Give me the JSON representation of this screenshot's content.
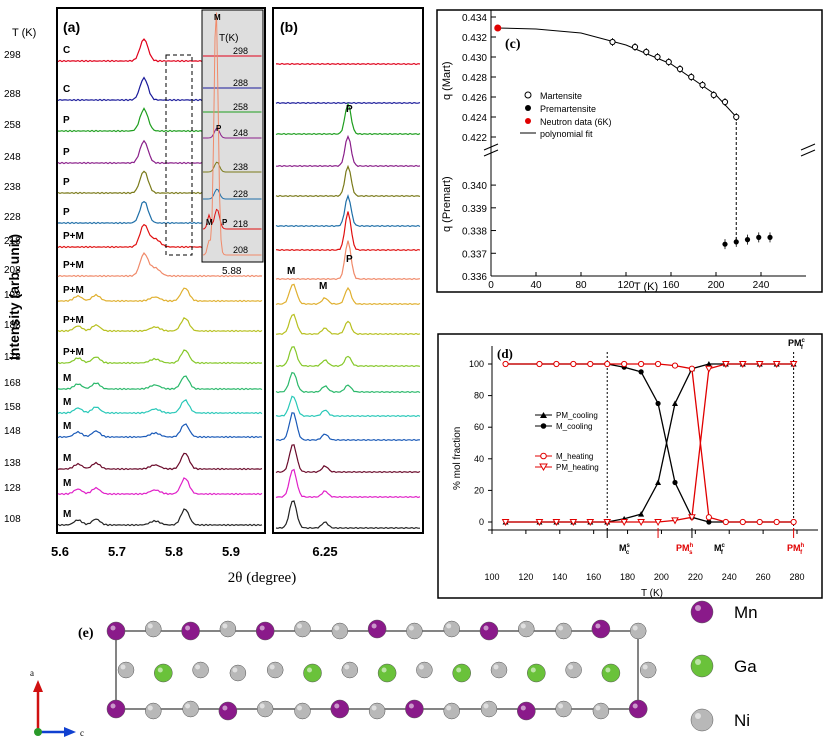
{
  "panel_a": {
    "letter": "(a)",
    "temp_header": "T (K)",
    "y_title": "Intensity (arb. unit)",
    "x_title": "2θ (degree)",
    "x_ticks": [
      "5.6",
      "5.7",
      "5.8",
      "5.9"
    ],
    "rows": [
      {
        "temp": "298",
        "phase": "C",
        "color": "#e0001a"
      },
      {
        "temp": "288",
        "phase": "C",
        "color": "#1a1a9a"
      },
      {
        "temp": "258",
        "phase": "P",
        "color": "#1e9e1e"
      },
      {
        "temp": "248",
        "phase": "P",
        "color": "#8a1f8a"
      },
      {
        "temp": "238",
        "phase": "P",
        "color": "#7a7a1a"
      },
      {
        "temp": "228",
        "phase": "P",
        "color": "#1f6fa8"
      },
      {
        "temp": "218",
        "phase": "P+M",
        "color": "#e01010"
      },
      {
        "temp": "208",
        "phase": "P+M",
        "color": "#f08a6a"
      },
      {
        "temp": "198",
        "phase": "P+M",
        "color": "#e0b030"
      },
      {
        "temp": "188",
        "phase": "P+M",
        "color": "#b8c020"
      },
      {
        "temp": "178",
        "phase": "P+M",
        "color": "#86c82a"
      },
      {
        "temp": "168",
        "phase": "M",
        "color": "#2ab86a"
      },
      {
        "temp": "158",
        "phase": "M",
        "color": "#28c8b8"
      },
      {
        "temp": "148",
        "phase": "M",
        "color": "#1a5ab8"
      },
      {
        "temp": "138",
        "phase": "M",
        "color": "#6a0a2a"
      },
      {
        "temp": "128",
        "phase": "M",
        "color": "#e020c8"
      },
      {
        "temp": "108",
        "phase": "M",
        "color": "#222222"
      }
    ],
    "inset": {
      "temp_header": "T(K)",
      "temps": [
        "298",
        "288",
        "258",
        "248",
        "238",
        "228",
        "218",
        "208"
      ],
      "labels": [
        "M",
        "P",
        "M",
        "P"
      ],
      "value": "5.88"
    }
  },
  "panel_b": {
    "letter": "(b)",
    "x_tick": "6.25",
    "labels": [
      "P",
      "P",
      "M",
      "M",
      "P"
    ]
  },
  "panel_c": {
    "letter": "(c)",
    "y_top_title": "q (Mart)",
    "y_bottom_title": "q (Premart)",
    "x_title": "T (K)",
    "y_top_ticks": [
      "0.434",
      "0.432",
      "0.430",
      "0.428",
      "0.426",
      "0.424",
      "0.422"
    ],
    "y_bottom_ticks": [
      "0.340",
      "0.339",
      "0.338",
      "0.337",
      "0.336"
    ],
    "x_ticks": [
      "0",
      "40",
      "80",
      "120",
      "160",
      "200",
      "240"
    ],
    "legend": [
      "Martensite",
      "Premartensite",
      "Neutron data (6K)",
      "polynomial fit"
    ],
    "colors": {
      "neutron": "#e00000"
    }
  },
  "panel_d": {
    "letter": "(d)",
    "y_title": "% mol fraction",
    "x_title": "T (K)",
    "x_ticks": [
      "100",
      "120",
      "140",
      "160",
      "180",
      "200",
      "220",
      "240",
      "260",
      "280"
    ],
    "y_ticks": [
      "0",
      "20",
      "40",
      "60",
      "80",
      "100"
    ],
    "legend": [
      "PM_cooling",
      "M_cooling",
      "M_heating",
      "PM_heating"
    ],
    "markers": {
      "ms": "M",
      "ms_sup": "s",
      "ms_sub": "c",
      "pms": "PM",
      "pms_sup": "h",
      "pms_sub": "s",
      "mf": "M",
      "mf_sup": "c",
      "mf_sub": "f",
      "pmf": "PM",
      "pmf_sup": "h",
      "pmf_sub": "f",
      "pmtop": "PM",
      "pmtop_sup": "c",
      "pmtop_sub": "f"
    },
    "colors": {
      "cooling": "#000000",
      "heating": "#e00000"
    }
  },
  "panel_e": {
    "letter": "(e)",
    "axis_a": "a",
    "axis_c": "c",
    "legend": [
      {
        "label": "Mn",
        "color": "#8a1a8a"
      },
      {
        "label": "Ga",
        "color": "#6ac23a"
      },
      {
        "label": "Ni",
        "color": "#b8b8b8"
      }
    ]
  },
  "chart_data": [
    {
      "type": "line",
      "title": "(c)",
      "xlabel": "T (K)",
      "ylabel": "q (Mart) / q (Premart)",
      "xlim": [
        0,
        280
      ],
      "series": [
        {
          "name": "Martensite",
          "x": [
            108,
            128,
            138,
            148,
            158,
            168,
            178,
            188,
            198,
            208,
            218
          ],
          "y": [
            0.4315,
            0.431,
            0.4305,
            0.43,
            0.4295,
            0.4288,
            0.428,
            0.4272,
            0.4262,
            0.4255,
            0.424
          ]
        },
        {
          "name": "Premartensite",
          "x": [
            208,
            218,
            228,
            238,
            248
          ],
          "y": [
            0.3374,
            0.3375,
            0.3376,
            0.3377,
            0.3377
          ]
        },
        {
          "name": "Neutron data (6K)",
          "x": [
            6
          ],
          "y": [
            0.4329
          ]
        },
        {
          "name": "polynomial fit",
          "x": [
            6,
            40,
            80,
            120,
            160,
            200,
            218
          ],
          "y": [
            0.4329,
            0.4328,
            0.4324,
            0.4312,
            0.4293,
            0.4262,
            0.424
          ]
        }
      ]
    },
    {
      "type": "line",
      "title": "(d)",
      "xlabel": "T (K)",
      "ylabel": "% mol fraction",
      "xlim": [
        100,
        280
      ],
      "ylim": [
        0,
        100
      ],
      "series": [
        {
          "name": "PM_cooling",
          "x": [
            108,
            128,
            138,
            148,
            158,
            168,
            178,
            188,
            198,
            208,
            218,
            228,
            238,
            248,
            258,
            268,
            278
          ],
          "y": [
            0,
            0,
            0,
            0,
            0,
            0,
            2,
            5,
            25,
            75,
            97,
            100,
            100,
            100,
            100,
            100,
            100
          ]
        },
        {
          "name": "M_cooling",
          "x": [
            108,
            128,
            138,
            148,
            158,
            168,
            178,
            188,
            198,
            208,
            218,
            228,
            238,
            248,
            258,
            268,
            278
          ],
          "y": [
            100,
            100,
            100,
            100,
            100,
            100,
            98,
            95,
            75,
            25,
            3,
            0,
            0,
            0,
            0,
            0,
            0
          ]
        },
        {
          "name": "M_heating",
          "x": [
            108,
            128,
            138,
            148,
            158,
            168,
            178,
            188,
            198,
            208,
            218,
            228,
            238,
            248,
            258,
            268,
            278
          ],
          "y": [
            100,
            100,
            100,
            100,
            100,
            100,
            100,
            100,
            100,
            99,
            97,
            3,
            0,
            0,
            0,
            0,
            0
          ]
        },
        {
          "name": "PM_heating",
          "x": [
            108,
            128,
            138,
            148,
            158,
            168,
            178,
            188,
            198,
            208,
            218,
            228,
            238,
            248,
            258,
            268,
            278
          ],
          "y": [
            0,
            0,
            0,
            0,
            0,
            0,
            0,
            0,
            0,
            1,
            3,
            97,
            100,
            100,
            100,
            100,
            100
          ]
        }
      ]
    }
  ]
}
